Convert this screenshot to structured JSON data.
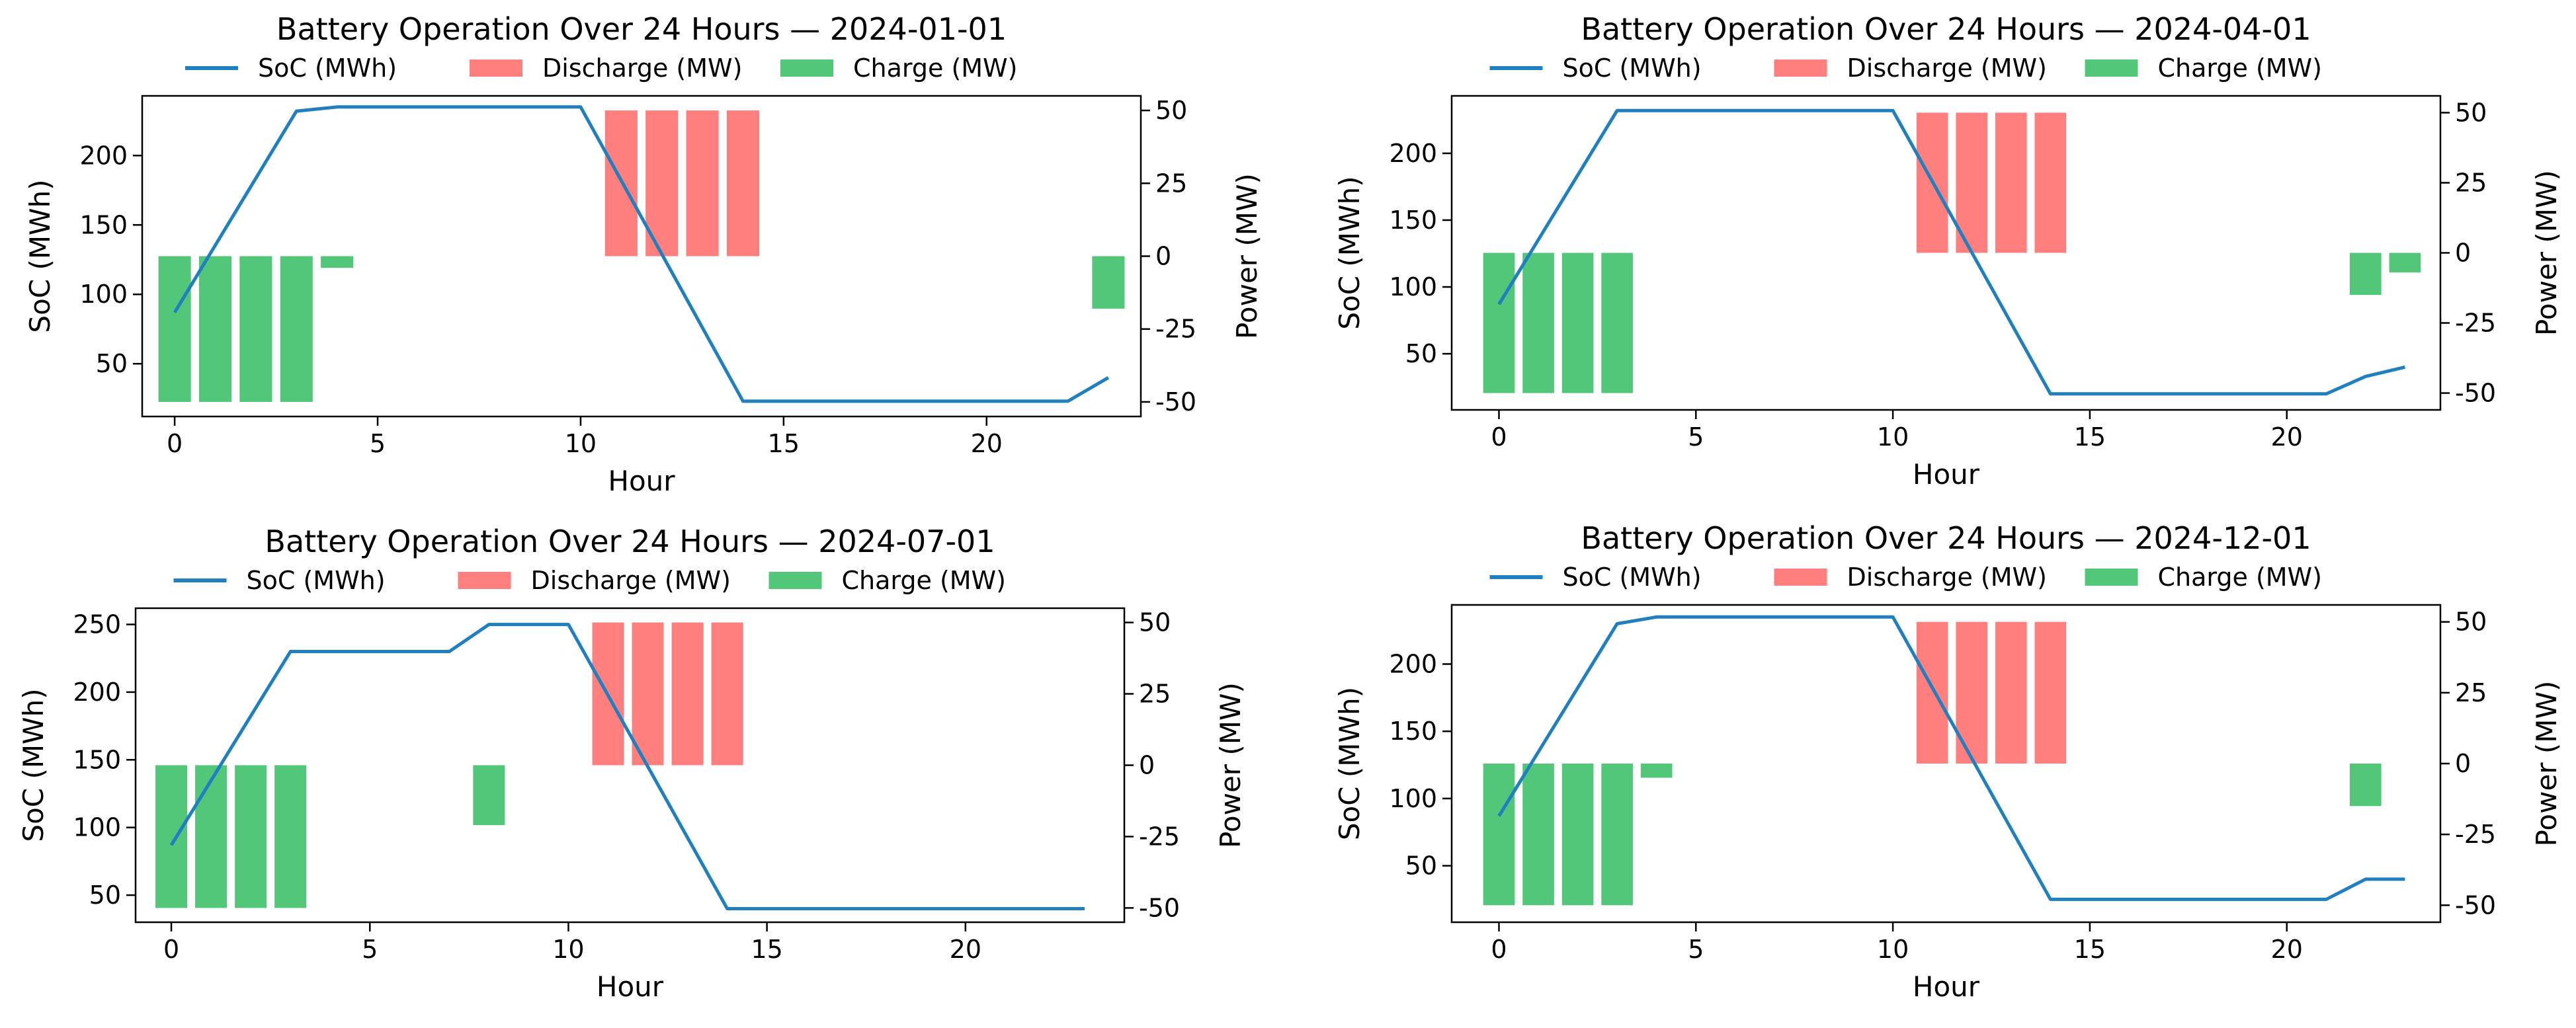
{
  "figure": {
    "colors": {
      "soc": "#1f7fbf",
      "discharge": "#ff7f7f",
      "charge": "#52c77a"
    }
  },
  "chart_data": [
    {
      "type": "bar+line",
      "title": "Battery Operation Over 24 Hours — 2024-01-01",
      "xlabel": "Hour",
      "ylabel_left": "SoC (MWh)",
      "ylabel_right": "Power (MW)",
      "legend": {
        "placement": "top-center",
        "entries": [
          "SoC (MWh)",
          "Discharge (MW)",
          "Charge (MW)"
        ]
      },
      "xlim": [
        -0.8,
        23.8
      ],
      "xticks": [
        0,
        5,
        10,
        15,
        20
      ],
      "ylim_left": [
        12,
        243
      ],
      "yticks_left": [
        50,
        100,
        150,
        200
      ],
      "ylim_right": [
        -55,
        55
      ],
      "yticks_right": [
        -50,
        -25,
        0,
        25,
        50
      ],
      "soc": [
        {
          "x": 0,
          "y": 87
        },
        {
          "x": 3,
          "y": 232
        },
        {
          "x": 4,
          "y": 235
        },
        {
          "x": 10,
          "y": 235
        },
        {
          "x": 14,
          "y": 23
        },
        {
          "x": 22,
          "y": 23
        },
        {
          "x": 23,
          "y": 40
        }
      ],
      "power": [
        {
          "x": 0,
          "y": -50
        },
        {
          "x": 1,
          "y": -50
        },
        {
          "x": 2,
          "y": -50
        },
        {
          "x": 3,
          "y": -50
        },
        {
          "x": 4,
          "y": -4
        },
        {
          "x": 11,
          "y": 50
        },
        {
          "x": 12,
          "y": 50
        },
        {
          "x": 13,
          "y": 50
        },
        {
          "x": 14,
          "y": 50
        },
        {
          "x": 23,
          "y": -18
        }
      ]
    },
    {
      "type": "bar+line",
      "title": "Battery Operation Over 24 Hours — 2024-04-01",
      "xlabel": "Hour",
      "ylabel_left": "SoC (MWh)",
      "ylabel_right": "Power (MW)",
      "legend": {
        "placement": "top-center",
        "entries": [
          "SoC (MWh)",
          "Discharge (MW)",
          "Charge (MW)"
        ]
      },
      "xlim": [
        -1.2,
        23.9
      ],
      "xticks": [
        0,
        5,
        10,
        15,
        20
      ],
      "ylim_left": [
        8,
        243
      ],
      "yticks_left": [
        50,
        100,
        150,
        200
      ],
      "ylim_right": [
        -56,
        56
      ],
      "yticks_right": [
        -50,
        -25,
        0,
        25,
        50
      ],
      "soc": [
        {
          "x": 0,
          "y": 87
        },
        {
          "x": 3,
          "y": 232
        },
        {
          "x": 10,
          "y": 232
        },
        {
          "x": 14,
          "y": 20
        },
        {
          "x": 21,
          "y": 20
        },
        {
          "x": 22,
          "y": 33
        },
        {
          "x": 23,
          "y": 40
        }
      ],
      "power": [
        {
          "x": 0,
          "y": -50
        },
        {
          "x": 1,
          "y": -50
        },
        {
          "x": 2,
          "y": -50
        },
        {
          "x": 3,
          "y": -50
        },
        {
          "x": 11,
          "y": 50
        },
        {
          "x": 12,
          "y": 50
        },
        {
          "x": 13,
          "y": 50
        },
        {
          "x": 14,
          "y": 50
        },
        {
          "x": 22,
          "y": -15
        },
        {
          "x": 23,
          "y": -7
        }
      ]
    },
    {
      "type": "bar+line",
      "title": "Battery Operation Over 24 Hours — 2024-07-01",
      "xlabel": "Hour",
      "ylabel_left": "SoC (MWh)",
      "ylabel_right": "Power (MW)",
      "legend": {
        "placement": "top-center",
        "entries": [
          "SoC (MWh)",
          "Discharge (MW)",
          "Charge (MW)"
        ]
      },
      "xlim": [
        -0.9,
        24.0
      ],
      "xticks": [
        0,
        5,
        10,
        15,
        20
      ],
      "ylim_left": [
        30,
        262
      ],
      "yticks_left": [
        50,
        100,
        150,
        200,
        250
      ],
      "ylim_right": [
        -55,
        55
      ],
      "yticks_right": [
        -50,
        -25,
        0,
        25,
        50
      ],
      "soc": [
        {
          "x": 0,
          "y": 87
        },
        {
          "x": 3,
          "y": 230
        },
        {
          "x": 7,
          "y": 230
        },
        {
          "x": 8,
          "y": 250
        },
        {
          "x": 10,
          "y": 250
        },
        {
          "x": 14,
          "y": 40
        },
        {
          "x": 23,
          "y": 40
        }
      ],
      "power": [
        {
          "x": 0,
          "y": -50
        },
        {
          "x": 1,
          "y": -50
        },
        {
          "x": 2,
          "y": -50
        },
        {
          "x": 3,
          "y": -50
        },
        {
          "x": 8,
          "y": -21
        },
        {
          "x": 11,
          "y": 50
        },
        {
          "x": 12,
          "y": 50
        },
        {
          "x": 13,
          "y": 50
        },
        {
          "x": 14,
          "y": 50
        }
      ]
    },
    {
      "type": "bar+line",
      "title": "Battery Operation Over 24 Hours — 2024-12-01",
      "xlabel": "Hour",
      "ylabel_left": "SoC (MWh)",
      "ylabel_right": "Power (MW)",
      "legend": {
        "placement": "top-center",
        "entries": [
          "SoC (MWh)",
          "Discharge (MW)",
          "Charge (MW)"
        ]
      },
      "xlim": [
        -1.2,
        23.9
      ],
      "xticks": [
        0,
        5,
        10,
        15,
        20
      ],
      "ylim_left": [
        8,
        244
      ],
      "yticks_left": [
        50,
        100,
        150,
        200
      ],
      "ylim_right": [
        -56,
        56
      ],
      "yticks_right": [
        -50,
        -25,
        0,
        25,
        50
      ],
      "soc": [
        {
          "x": 0,
          "y": 87
        },
        {
          "x": 3,
          "y": 230
        },
        {
          "x": 4,
          "y": 235
        },
        {
          "x": 10,
          "y": 235
        },
        {
          "x": 14,
          "y": 25
        },
        {
          "x": 21,
          "y": 25
        },
        {
          "x": 22,
          "y": 40
        },
        {
          "x": 23,
          "y": 40
        }
      ],
      "power": [
        {
          "x": 0,
          "y": -50
        },
        {
          "x": 1,
          "y": -50
        },
        {
          "x": 2,
          "y": -50
        },
        {
          "x": 3,
          "y": -50
        },
        {
          "x": 4,
          "y": -5
        },
        {
          "x": 11,
          "y": 50
        },
        {
          "x": 12,
          "y": 50
        },
        {
          "x": 13,
          "y": 50
        },
        {
          "x": 14,
          "y": 50
        },
        {
          "x": 22,
          "y": -15
        }
      ]
    }
  ]
}
